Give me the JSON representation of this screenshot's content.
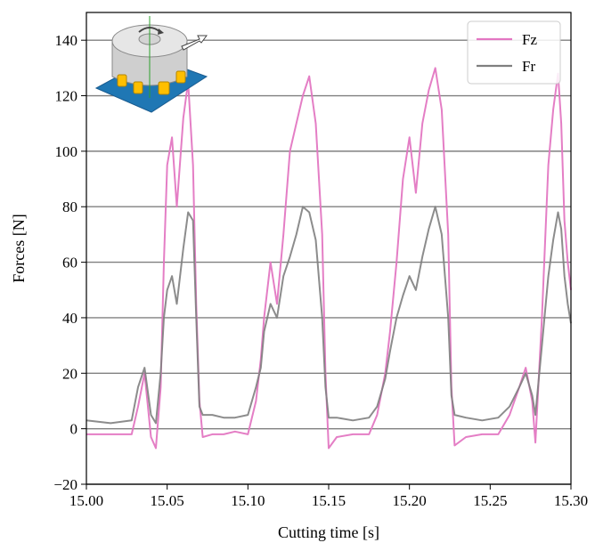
{
  "chart_data": {
    "type": "line",
    "title": "",
    "xlabel": "Cutting time [s]",
    "ylabel": "Forces [N]",
    "xlim": [
      15.0,
      15.3
    ],
    "ylim": [
      -20,
      150
    ],
    "x_ticks": [
      15.0,
      15.05,
      15.1,
      15.15,
      15.2,
      15.25,
      15.3
    ],
    "x_tick_labels": [
      "15.00",
      "15.05",
      "15.10",
      "15.15",
      "15.20",
      "15.25",
      "15.30"
    ],
    "y_ticks": [
      -20,
      0,
      20,
      40,
      60,
      80,
      100,
      120,
      140
    ],
    "y_tick_labels": [
      "−20",
      "0",
      "20",
      "40",
      "60",
      "80",
      "100",
      "120",
      "140"
    ],
    "grid": "horizontal",
    "legend_position": "top-right",
    "series": [
      {
        "name": "Fz",
        "color": "#e377c2",
        "points": [
          [
            15.0,
            -2
          ],
          [
            15.015,
            -2
          ],
          [
            15.028,
            -2
          ],
          [
            15.032,
            8
          ],
          [
            15.036,
            20
          ],
          [
            15.04,
            -3
          ],
          [
            15.043,
            -7
          ],
          [
            15.046,
            15
          ],
          [
            15.048,
            60
          ],
          [
            15.05,
            95
          ],
          [
            15.053,
            105
          ],
          [
            15.056,
            80
          ],
          [
            15.06,
            112
          ],
          [
            15.063,
            125
          ],
          [
            15.066,
            95
          ],
          [
            15.068,
            45
          ],
          [
            15.07,
            10
          ],
          [
            15.072,
            -3
          ],
          [
            15.078,
            -2
          ],
          [
            15.085,
            -2
          ],
          [
            15.092,
            -1
          ],
          [
            15.1,
            -2
          ],
          [
            15.105,
            10
          ],
          [
            15.108,
            25
          ],
          [
            15.11,
            40
          ],
          [
            15.114,
            60
          ],
          [
            15.118,
            45
          ],
          [
            15.122,
            70
          ],
          [
            15.126,
            100
          ],
          [
            15.13,
            110
          ],
          [
            15.134,
            120
          ],
          [
            15.138,
            127
          ],
          [
            15.142,
            110
          ],
          [
            15.146,
            70
          ],
          [
            15.148,
            20
          ],
          [
            15.15,
            -7
          ],
          [
            15.155,
            -3
          ],
          [
            15.165,
            -2
          ],
          [
            15.175,
            -2
          ],
          [
            15.18,
            5
          ],
          [
            15.185,
            20
          ],
          [
            15.188,
            35
          ],
          [
            15.192,
            60
          ],
          [
            15.196,
            90
          ],
          [
            15.2,
            105
          ],
          [
            15.204,
            85
          ],
          [
            15.208,
            110
          ],
          [
            15.212,
            122
          ],
          [
            15.216,
            130
          ],
          [
            15.22,
            115
          ],
          [
            15.224,
            70
          ],
          [
            15.226,
            15
          ],
          [
            15.228,
            -6
          ],
          [
            15.235,
            -3
          ],
          [
            15.245,
            -2
          ],
          [
            15.255,
            -2
          ],
          [
            15.262,
            5
          ],
          [
            15.268,
            15
          ],
          [
            15.272,
            22
          ],
          [
            15.276,
            10
          ],
          [
            15.278,
            -5
          ],
          [
            15.282,
            40
          ],
          [
            15.286,
            95
          ],
          [
            15.289,
            115
          ],
          [
            15.292,
            128
          ],
          [
            15.294,
            110
          ],
          [
            15.296,
            75
          ],
          [
            15.298,
            60
          ],
          [
            15.3,
            50
          ]
        ]
      },
      {
        "name": "Fr",
        "color": "#7f7f7f",
        "points": [
          [
            15.0,
            3
          ],
          [
            15.015,
            2
          ],
          [
            15.028,
            3
          ],
          [
            15.032,
            15
          ],
          [
            15.036,
            22
          ],
          [
            15.04,
            5
          ],
          [
            15.043,
            2
          ],
          [
            15.046,
            20
          ],
          [
            15.048,
            40
          ],
          [
            15.05,
            50
          ],
          [
            15.053,
            55
          ],
          [
            15.056,
            45
          ],
          [
            15.06,
            65
          ],
          [
            15.063,
            78
          ],
          [
            15.066,
            75
          ],
          [
            15.068,
            40
          ],
          [
            15.07,
            8
          ],
          [
            15.072,
            5
          ],
          [
            15.078,
            5
          ],
          [
            15.085,
            4
          ],
          [
            15.092,
            4
          ],
          [
            15.1,
            5
          ],
          [
            15.105,
            15
          ],
          [
            15.108,
            22
          ],
          [
            15.11,
            35
          ],
          [
            15.114,
            45
          ],
          [
            15.118,
            40
          ],
          [
            15.122,
            55
          ],
          [
            15.126,
            62
          ],
          [
            15.13,
            70
          ],
          [
            15.134,
            80
          ],
          [
            15.138,
            78
          ],
          [
            15.142,
            68
          ],
          [
            15.146,
            40
          ],
          [
            15.148,
            15
          ],
          [
            15.15,
            4
          ],
          [
            15.155,
            4
          ],
          [
            15.165,
            3
          ],
          [
            15.175,
            4
          ],
          [
            15.18,
            8
          ],
          [
            15.185,
            18
          ],
          [
            15.188,
            28
          ],
          [
            15.192,
            40
          ],
          [
            15.196,
            48
          ],
          [
            15.2,
            55
          ],
          [
            15.204,
            50
          ],
          [
            15.208,
            62
          ],
          [
            15.212,
            72
          ],
          [
            15.216,
            80
          ],
          [
            15.22,
            70
          ],
          [
            15.224,
            40
          ],
          [
            15.226,
            12
          ],
          [
            15.228,
            5
          ],
          [
            15.235,
            4
          ],
          [
            15.245,
            3
          ],
          [
            15.255,
            4
          ],
          [
            15.262,
            8
          ],
          [
            15.268,
            15
          ],
          [
            15.272,
            20
          ],
          [
            15.276,
            12
          ],
          [
            15.278,
            5
          ],
          [
            15.282,
            30
          ],
          [
            15.286,
            55
          ],
          [
            15.289,
            68
          ],
          [
            15.292,
            78
          ],
          [
            15.294,
            72
          ],
          [
            15.296,
            55
          ],
          [
            15.298,
            45
          ],
          [
            15.3,
            38
          ]
        ]
      }
    ]
  }
}
